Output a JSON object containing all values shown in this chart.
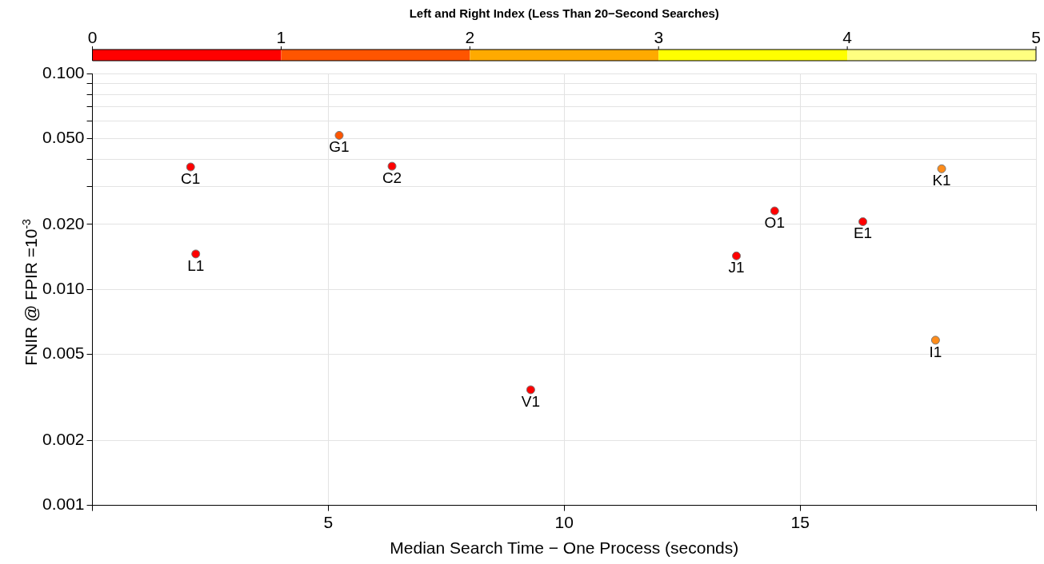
{
  "chart_data": {
    "type": "scatter",
    "xlabel": "Median Search Time − One Process (seconds)",
    "ylabel": "FNIR @ FPIR =10$^{-3}$",
    "clabel": "Left and Right Index (Less Than 20−Second Searches)",
    "clim": [
      0,
      5
    ],
    "cticks": [
      0,
      1,
      2,
      3,
      4,
      5
    ],
    "log": "y",
    "grid": true,
    "marker": "circle",
    "legend": false,
    "xlim": [
      0,
      20
    ],
    "xticks": [
      {
        "value": 0,
        "label": null
      },
      5,
      10,
      15,
      {
        "value": 20,
        "label": null
      }
    ],
    "ylim": [
      0.001,
      0.1
    ],
    "yticks": [
      {
        "value": 0.001,
        "label": "0.001"
      },
      {
        "value": 0.002,
        "label": "0.002"
      },
      {
        "value": 0.005,
        "label": "0.005"
      },
      {
        "value": 0.01,
        "label": "0.010"
      },
      {
        "value": 0.02,
        "label": "0.020"
      },
      {
        "value": 0.03,
        "label": null
      },
      {
        "value": 0.04,
        "label": null
      },
      {
        "value": 0.05,
        "label": "0.050"
      },
      {
        "value": 0.06,
        "label": null
      },
      {
        "value": 0.07,
        "label": null
      },
      {
        "value": 0.08,
        "label": null
      },
      {
        "value": 0.09,
        "label": null
      },
      {
        "value": 0.1,
        "label": "0.100"
      }
    ],
    "x": [
      2.08,
      2.19,
      5.23,
      6.35,
      9.29,
      14.46,
      13.65,
      16.33,
      18.0,
      17.87
    ],
    "values": [
      0.0369,
      0.0146,
      0.0517,
      0.0372,
      0.00343,
      0.0231,
      0.0143,
      0.0206,
      0.0362,
      0.00582
    ],
    "colors": [
      "#ff0000",
      "#ff0000",
      "#ff5500",
      "#ff0000",
      "#ff0000",
      "#ff0000",
      "#ff0000",
      "#ff0000",
      "#ff8c1a",
      "#ff8c1a"
    ],
    "annotations": [
      {
        "text": "C1",
        "x": 2.08,
        "y": 0.0369
      },
      {
        "text": "L1",
        "x": 2.19,
        "y": 0.0146
      },
      {
        "text": "G1",
        "x": 5.23,
        "y": 0.0517
      },
      {
        "text": "C2",
        "x": 6.35,
        "y": 0.0372
      },
      {
        "text": "V1",
        "x": 9.29,
        "y": 0.00343
      },
      {
        "text": "O1",
        "x": 14.46,
        "y": 0.0231
      },
      {
        "text": "J1",
        "x": 13.65,
        "y": 0.0143
      },
      {
        "text": "E1",
        "x": 16.33,
        "y": 0.0206
      },
      {
        "text": "K1",
        "x": 18.0,
        "y": 0.0362
      },
      {
        "text": "I1",
        "x": 17.87,
        "y": 0.00582
      }
    ]
  }
}
